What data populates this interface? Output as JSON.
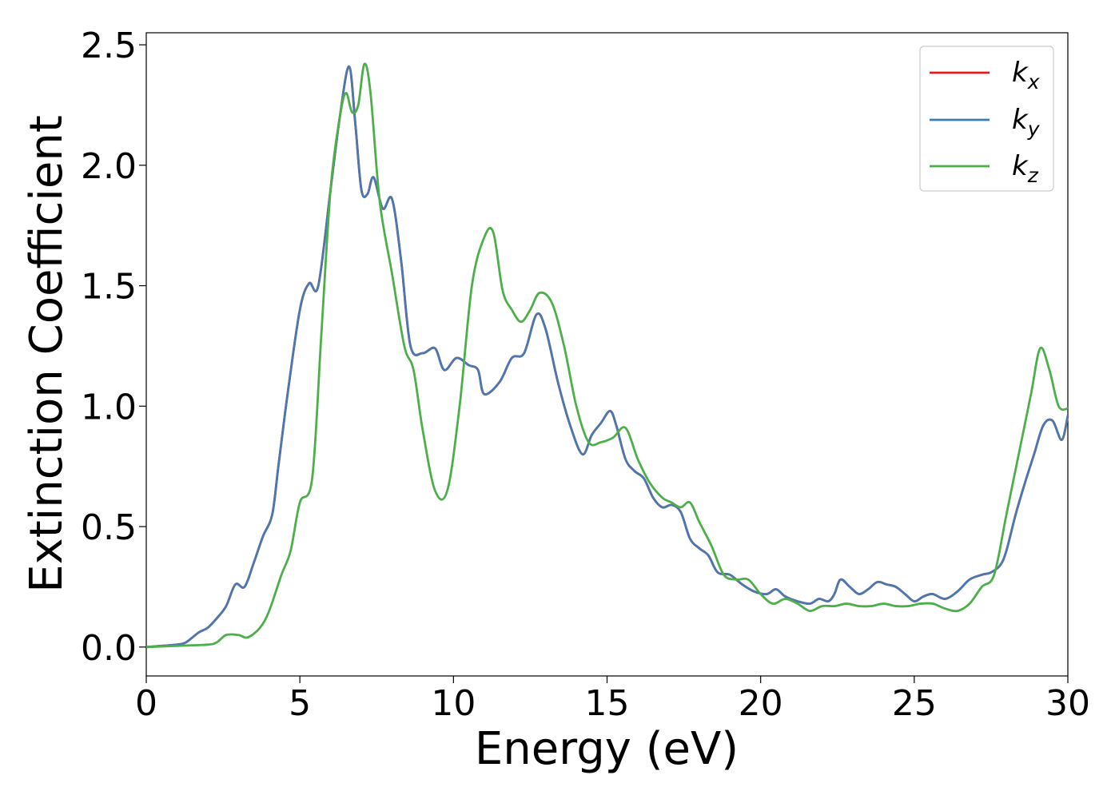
{
  "chart_data": {
    "type": "line",
    "xlabel": "Energy (eV)",
    "ylabel": "Extinction Coefficient",
    "xlim": [
      0,
      30
    ],
    "ylim": [
      -0.12,
      2.55
    ],
    "xticks": [
      0,
      5,
      10,
      15,
      20,
      25,
      30
    ],
    "yticks": [
      0.0,
      0.5,
      1.0,
      1.5,
      2.0,
      2.5
    ],
    "xtick_labels": [
      "0",
      "5",
      "10",
      "15",
      "20",
      "25",
      "30"
    ],
    "ytick_labels": [
      "0.0",
      "0.5",
      "1.0",
      "1.5",
      "2.0",
      "2.5"
    ],
    "grid": false,
    "legend": {
      "position": "top-right",
      "entries": [
        {
          "base": "k",
          "sub": "x",
          "color": "#e41a1c"
        },
        {
          "base": "k",
          "sub": "y",
          "color": "#377eb8"
        },
        {
          "base": "k",
          "sub": "z",
          "color": "#4daf4a"
        }
      ]
    },
    "series": [
      {
        "name": "kx",
        "color": "#e41a1c",
        "x": [
          0,
          0.5,
          1.0,
          1.3,
          1.7,
          2.0,
          2.3,
          2.6,
          2.9,
          3.2,
          3.5,
          3.8,
          4.1,
          4.3,
          4.6,
          5.0,
          5.3,
          5.6,
          6.0,
          6.3,
          6.6,
          6.8,
          7.0,
          7.2,
          7.4,
          7.7,
          8.0,
          8.3,
          8.6,
          9.0,
          9.4,
          9.7,
          10.1,
          10.5,
          10.8,
          11.0,
          11.5,
          11.9,
          12.3,
          12.7,
          13.0,
          13.4,
          13.8,
          14.2,
          14.5,
          14.8,
          15.1,
          15.3,
          15.6,
          15.9,
          16.2,
          16.5,
          16.8,
          17.1,
          17.4,
          17.7,
          18.0,
          18.3,
          18.6,
          19.0,
          19.4,
          19.8,
          20.2,
          20.5,
          20.8,
          21.2,
          21.6,
          21.9,
          22.2,
          22.4,
          22.6,
          22.9,
          23.2,
          23.5,
          23.8,
          24.1,
          24.4,
          24.7,
          25.0,
          25.3,
          25.6,
          26.0,
          26.4,
          26.8,
          27.2,
          27.5,
          27.8,
          28.0,
          28.3,
          28.6,
          28.9,
          29.2,
          29.5,
          29.8,
          30.0
        ],
        "y": [
          0.0,
          0.005,
          0.01,
          0.02,
          0.06,
          0.08,
          0.12,
          0.17,
          0.26,
          0.25,
          0.35,
          0.46,
          0.55,
          0.75,
          1.05,
          1.4,
          1.51,
          1.5,
          1.9,
          2.2,
          2.41,
          2.18,
          1.9,
          1.88,
          1.95,
          1.82,
          1.86,
          1.6,
          1.25,
          1.22,
          1.24,
          1.15,
          1.2,
          1.17,
          1.15,
          1.05,
          1.1,
          1.2,
          1.22,
          1.38,
          1.32,
          1.1,
          0.92,
          0.8,
          0.88,
          0.93,
          0.98,
          0.92,
          0.78,
          0.73,
          0.7,
          0.62,
          0.58,
          0.59,
          0.56,
          0.45,
          0.41,
          0.38,
          0.31,
          0.3,
          0.26,
          0.23,
          0.22,
          0.24,
          0.21,
          0.19,
          0.18,
          0.2,
          0.19,
          0.22,
          0.28,
          0.25,
          0.22,
          0.24,
          0.27,
          0.26,
          0.25,
          0.22,
          0.19,
          0.21,
          0.22,
          0.2,
          0.23,
          0.28,
          0.3,
          0.31,
          0.34,
          0.4,
          0.55,
          0.68,
          0.8,
          0.92,
          0.94,
          0.86,
          0.96
        ]
      },
      {
        "name": "ky",
        "color": "#4a78b0",
        "x": [
          0,
          0.5,
          1.0,
          1.3,
          1.7,
          2.0,
          2.3,
          2.6,
          2.9,
          3.2,
          3.5,
          3.8,
          4.1,
          4.3,
          4.6,
          5.0,
          5.3,
          5.6,
          6.0,
          6.3,
          6.6,
          6.8,
          7.0,
          7.2,
          7.4,
          7.7,
          8.0,
          8.3,
          8.6,
          9.0,
          9.4,
          9.7,
          10.1,
          10.5,
          10.8,
          11.0,
          11.5,
          11.9,
          12.3,
          12.7,
          13.0,
          13.4,
          13.8,
          14.2,
          14.5,
          14.8,
          15.1,
          15.3,
          15.6,
          15.9,
          16.2,
          16.5,
          16.8,
          17.1,
          17.4,
          17.7,
          18.0,
          18.3,
          18.6,
          19.0,
          19.4,
          19.8,
          20.2,
          20.5,
          20.8,
          21.2,
          21.6,
          21.9,
          22.2,
          22.4,
          22.6,
          22.9,
          23.2,
          23.5,
          23.8,
          24.1,
          24.4,
          24.7,
          25.0,
          25.3,
          25.6,
          26.0,
          26.4,
          26.8,
          27.2,
          27.5,
          27.8,
          28.0,
          28.3,
          28.6,
          28.9,
          29.2,
          29.5,
          29.8,
          30.0
        ],
        "y": [
          0.0,
          0.005,
          0.01,
          0.02,
          0.06,
          0.08,
          0.12,
          0.17,
          0.26,
          0.25,
          0.35,
          0.46,
          0.55,
          0.75,
          1.05,
          1.4,
          1.51,
          1.5,
          1.9,
          2.2,
          2.41,
          2.18,
          1.9,
          1.88,
          1.95,
          1.82,
          1.86,
          1.6,
          1.25,
          1.22,
          1.24,
          1.15,
          1.2,
          1.17,
          1.15,
          1.05,
          1.1,
          1.2,
          1.22,
          1.38,
          1.32,
          1.1,
          0.92,
          0.8,
          0.88,
          0.93,
          0.98,
          0.92,
          0.78,
          0.73,
          0.7,
          0.62,
          0.58,
          0.59,
          0.56,
          0.45,
          0.41,
          0.38,
          0.31,
          0.3,
          0.26,
          0.23,
          0.22,
          0.24,
          0.21,
          0.19,
          0.18,
          0.2,
          0.19,
          0.22,
          0.28,
          0.25,
          0.22,
          0.24,
          0.27,
          0.26,
          0.25,
          0.22,
          0.19,
          0.21,
          0.22,
          0.2,
          0.23,
          0.28,
          0.3,
          0.31,
          0.34,
          0.4,
          0.55,
          0.68,
          0.8,
          0.92,
          0.94,
          0.86,
          0.96
        ]
      },
      {
        "name": "kz",
        "color": "#4daf4a",
        "x": [
          0,
          1.0,
          2.0,
          2.3,
          2.6,
          3.0,
          3.3,
          3.7,
          4.0,
          4.4,
          4.7,
          5.0,
          5.4,
          5.7,
          6.0,
          6.3,
          6.5,
          6.7,
          6.9,
          7.1,
          7.3,
          7.6,
          8.0,
          8.4,
          8.7,
          9.0,
          9.4,
          9.8,
          10.2,
          10.6,
          11.0,
          11.3,
          11.6,
          11.9,
          12.2,
          12.5,
          12.8,
          13.2,
          13.6,
          14.0,
          14.4,
          14.8,
          15.2,
          15.6,
          16.0,
          16.4,
          16.8,
          17.1,
          17.4,
          17.7,
          18.0,
          18.4,
          18.8,
          19.2,
          19.6,
          20.0,
          20.4,
          20.8,
          21.2,
          21.6,
          22.0,
          22.4,
          22.8,
          23.2,
          23.6,
          24.0,
          24.4,
          24.8,
          25.2,
          25.6,
          26.0,
          26.4,
          26.8,
          27.2,
          27.6,
          28.0,
          28.4,
          28.8,
          29.1,
          29.4,
          29.7,
          30.0
        ],
        "y": [
          0.0,
          0.005,
          0.01,
          0.02,
          0.05,
          0.05,
          0.04,
          0.08,
          0.15,
          0.3,
          0.4,
          0.6,
          0.7,
          1.3,
          1.9,
          2.2,
          2.3,
          2.22,
          2.25,
          2.42,
          2.3,
          1.85,
          1.55,
          1.25,
          1.15,
          0.9,
          0.65,
          0.65,
          1.0,
          1.5,
          1.7,
          1.72,
          1.48,
          1.4,
          1.35,
          1.4,
          1.47,
          1.43,
          1.25,
          1.0,
          0.85,
          0.85,
          0.87,
          0.91,
          0.78,
          0.68,
          0.62,
          0.6,
          0.58,
          0.6,
          0.52,
          0.42,
          0.3,
          0.28,
          0.28,
          0.22,
          0.18,
          0.2,
          0.18,
          0.15,
          0.17,
          0.17,
          0.18,
          0.17,
          0.17,
          0.18,
          0.17,
          0.17,
          0.18,
          0.18,
          0.16,
          0.15,
          0.18,
          0.25,
          0.3,
          0.55,
          0.8,
          1.05,
          1.24,
          1.15,
          1.0,
          0.99
        ]
      }
    ]
  }
}
